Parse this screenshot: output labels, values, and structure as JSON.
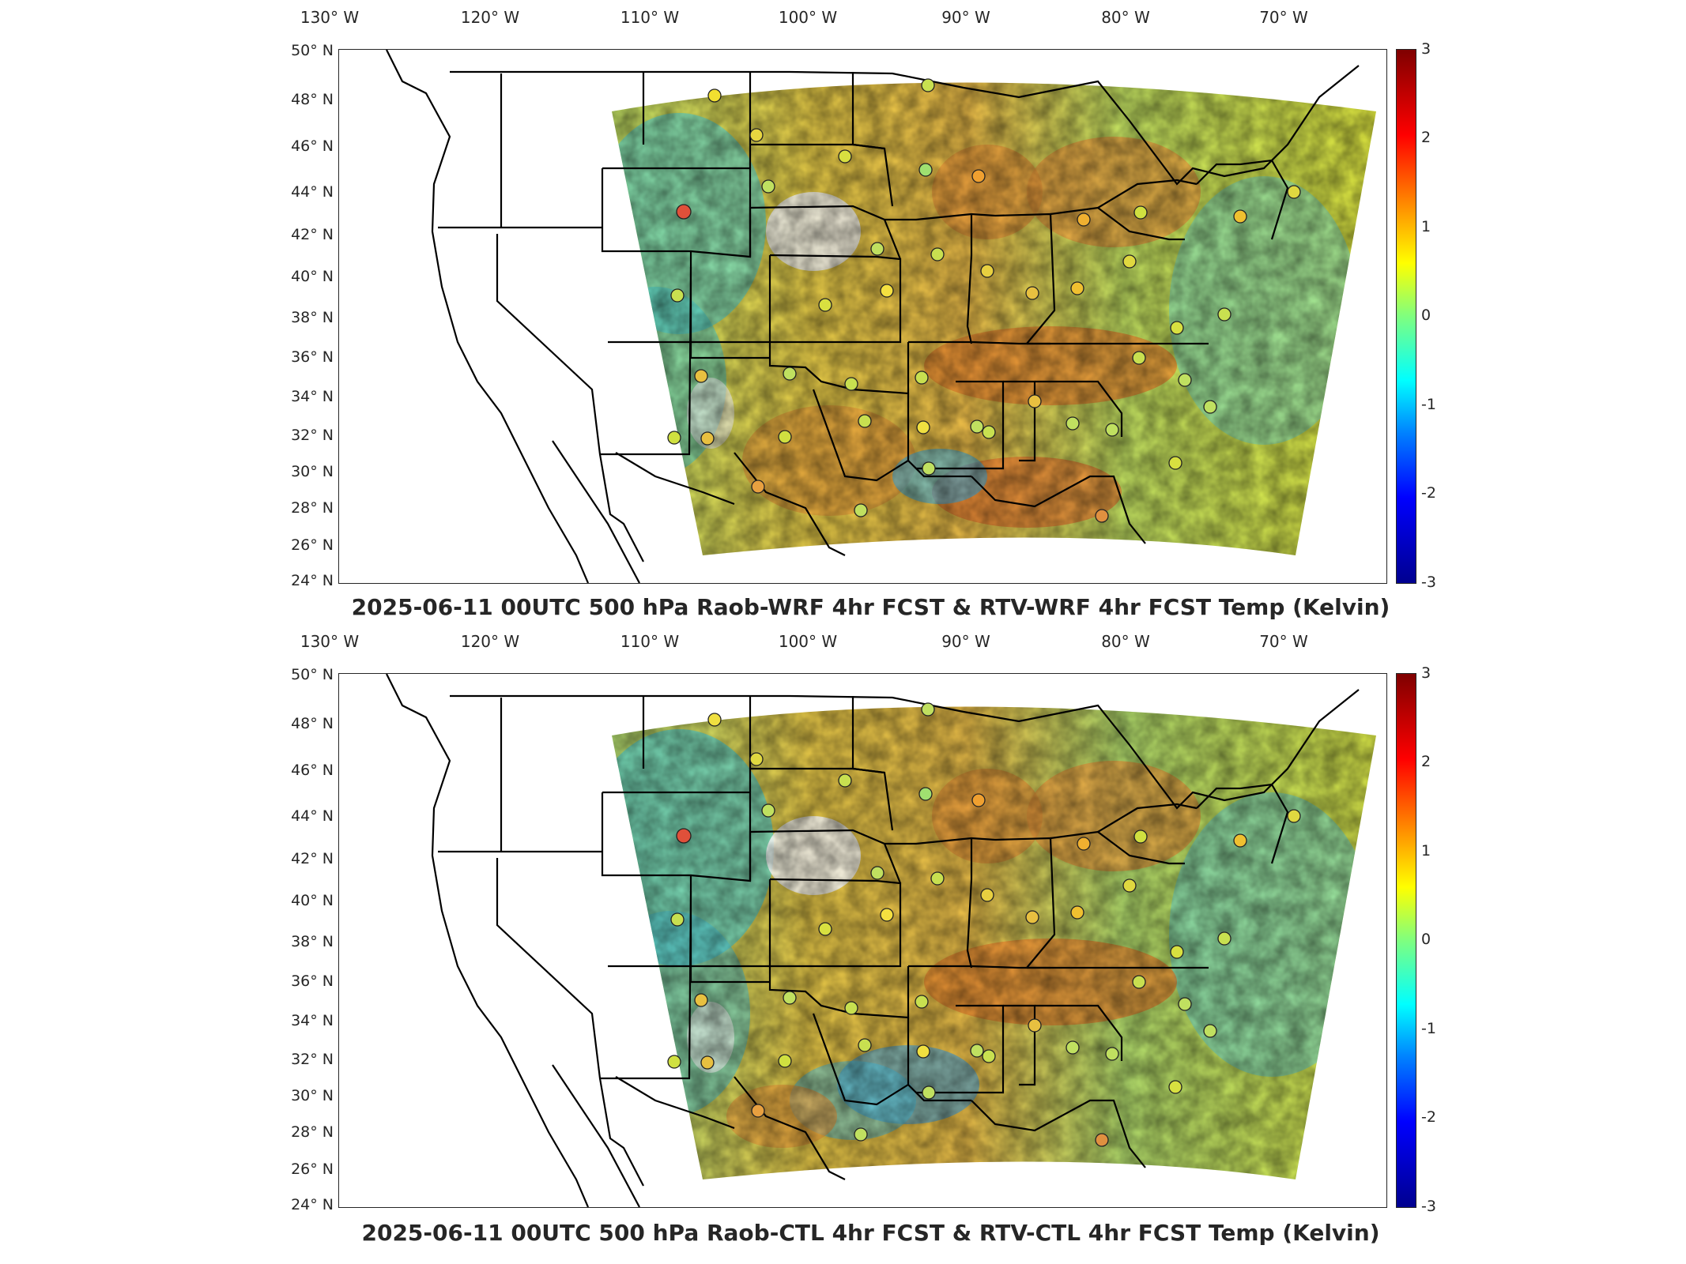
{
  "panels": [
    {
      "title": "2025-06-11 00UTC 500 hPa Raob-WRF 4hr FCST & RTV-WRF 4hr FCST Temp (Kelvin)",
      "variant": "wrf"
    },
    {
      "title": "2025-06-11 00UTC 500 hPa Raob-CTL 4hr FCST & RTV-CTL 4hr FCST Temp (Kelvin)",
      "variant": "ctl"
    }
  ],
  "axes": {
    "lon_ticks": [
      "130° W",
      "120° W",
      "110° W",
      "100° W",
      "90° W",
      "80° W",
      "70° W"
    ],
    "lat_ticks": [
      "50° N",
      "48° N",
      "46° N",
      "44° N",
      "42° N",
      "40° N",
      "38° N",
      "36° N",
      "34° N",
      "32° N",
      "30° N",
      "28° N",
      "26° N",
      "24° N"
    ]
  },
  "colorbar": {
    "ticks": [
      "3",
      "2",
      "1",
      "0",
      "-1",
      "-2",
      "-3"
    ],
    "colors": [
      "#7f0000",
      "#ff0000",
      "#ff8000",
      "#ffff00",
      "#7fff7f",
      "#00ffff",
      "#0080ff",
      "#0000ff",
      "#00008f"
    ]
  },
  "stations": {
    "top": [
      {
        "c": "#f2e030"
      },
      {
        "c": "#e8d640"
      },
      {
        "c": "#d8e040"
      },
      {
        "c": "#c8e050"
      },
      {
        "c": "#9fe070"
      },
      {
        "c": "#e0503a"
      },
      {
        "c": "#bfe060"
      },
      {
        "c": "#c0e060"
      },
      {
        "c": "#c8e050"
      },
      {
        "c": "#e8c040"
      },
      {
        "c": "#f0a030"
      },
      {
        "c": "#f0b030"
      },
      {
        "c": "#d0e040"
      },
      {
        "c": "#f0c030"
      },
      {
        "c": "#e0d840"
      },
      {
        "c": "#d8e040"
      },
      {
        "c": "#f4e040"
      }
    ],
    "bottom": [
      {
        "c": "#f0e040"
      },
      {
        "c": "#e0d840"
      },
      {
        "c": "#c8e050"
      },
      {
        "c": "#c0e060"
      },
      {
        "c": "#a0e070"
      },
      {
        "c": "#e0503a"
      },
      {
        "c": "#c0e060"
      },
      {
        "c": "#c0e060"
      },
      {
        "c": "#c8e050"
      },
      {
        "c": "#e8c040"
      },
      {
        "c": "#f0a030"
      },
      {
        "c": "#f0b030"
      },
      {
        "c": "#d0e040"
      },
      {
        "c": "#f0c030"
      },
      {
        "c": "#e0d840"
      },
      {
        "c": "#d8e040"
      },
      {
        "c": "#f4e040"
      }
    ]
  }
}
